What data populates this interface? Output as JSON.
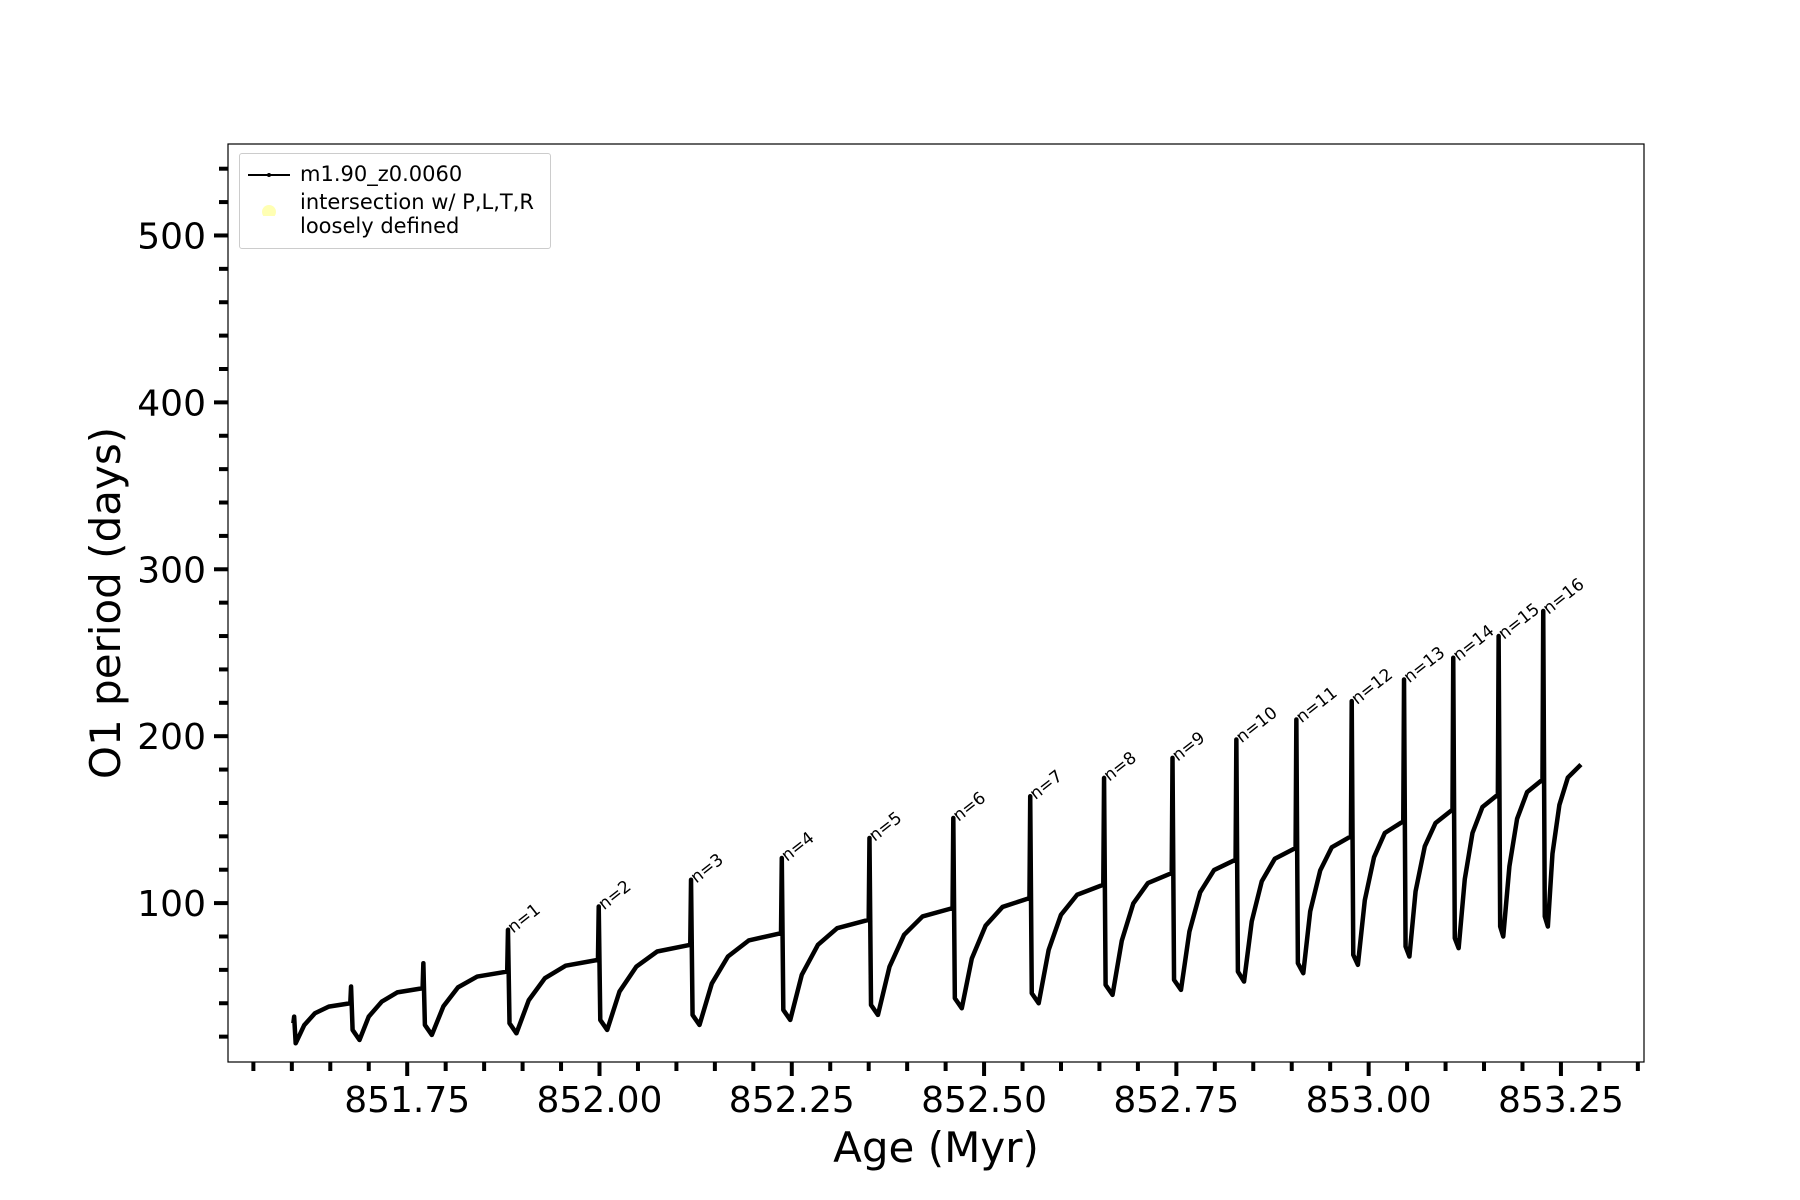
{
  "chart_data": {
    "type": "line",
    "x_label": "Age (Myr)",
    "y_label": "O1 period (days)",
    "xlim": [
      851.517,
      853.358
    ],
    "ylim": [
      4.8,
      554.8
    ],
    "xticks": [
      {
        "value": 851.75,
        "label": "851.75"
      },
      {
        "value": 852,
        "label": "852.00"
      },
      {
        "value": 852.25,
        "label": "852.25"
      },
      {
        "value": 852.5,
        "label": "852.50"
      },
      {
        "value": 852.75,
        "label": "852.75"
      },
      {
        "value": 853,
        "label": "853.00"
      },
      {
        "value": 853.25,
        "label": "853.25"
      }
    ],
    "xminorticks": [
      851.55,
      851.6,
      851.65,
      851.7,
      851.8,
      851.85,
      851.9,
      851.95,
      852.05,
      852.1,
      852.15,
      852.2,
      852.3,
      852.35,
      852.4,
      852.45,
      852.55,
      852.6,
      852.65,
      852.7,
      852.8,
      852.85,
      852.9,
      852.95,
      853.05,
      853.1,
      853.15,
      853.2,
      853.3,
      853.35
    ],
    "yticks": [
      100,
      200,
      300,
      400,
      500
    ],
    "yminorticks": [
      20,
      40,
      60,
      80,
      120,
      140,
      160,
      180,
      220,
      240,
      260,
      280,
      320,
      340,
      360,
      380,
      420,
      440,
      460,
      480,
      520,
      540
    ],
    "grid": false,
    "legend": "upper left",
    "series": [
      {
        "name": "m1.90_z0.0060",
        "color": "#000000",
        "x": [
          851.602,
          851.603,
          851.605,
          851.616,
          851.63,
          851.648,
          851.676,
          851.677,
          851.679,
          851.688,
          851.7,
          851.717,
          851.737,
          851.77,
          851.771,
          851.773,
          851.782,
          851.797,
          851.816,
          851.841,
          851.88,
          851.881,
          851.883,
          851.892,
          851.908,
          851.929,
          851.956,
          851.998,
          851.999,
          852.001,
          852.01,
          852.026,
          852.048,
          852.075,
          852.118,
          852.119,
          852.121,
          852.13,
          852.146,
          852.167,
          852.194,
          852.236,
          852.237,
          852.239,
          852.248,
          852.263,
          852.284,
          852.309,
          852.35,
          852.351,
          852.353,
          852.362,
          852.377,
          852.396,
          852.42,
          852.459,
          852.46,
          852.462,
          852.471,
          852.484,
          852.502,
          852.524,
          852.559,
          852.56,
          852.562,
          852.571,
          852.584,
          852.6,
          852.621,
          852.655,
          852.656,
          852.658,
          852.667,
          852.679,
          852.694,
          852.713,
          852.744,
          852.745,
          852.747,
          852.756,
          852.767,
          852.781,
          852.799,
          852.827,
          852.828,
          852.83,
          852.838,
          852.848,
          852.861,
          852.878,
          852.905,
          852.906,
          852.908,
          852.915,
          852.924,
          852.937,
          852.952,
          852.977,
          852.978,
          852.98,
          852.986,
          852.995,
          853.007,
          853.021,
          853.045,
          853.046,
          853.048,
          853.053,
          853.061,
          853.073,
          853.087,
          853.109,
          853.11,
          853.112,
          853.117,
          853.125,
          853.135,
          853.148,
          853.168,
          853.169,
          853.171,
          853.175,
          853.183,
          853.193,
          853.206,
          853.226,
          853.227,
          853.229,
          853.233,
          853.239,
          853.248,
          853.259,
          853.276
        ],
        "values": [
          28,
          32,
          16,
          26.8,
          34,
          38,
          40,
          50,
          24,
          18,
          32,
          41,
          46.5,
          49,
          64,
          27,
          21,
          38.1,
          49.5,
          56,
          59,
          84,
          28,
          22,
          41.8,
          55,
          62.5,
          66,
          98,
          30,
          24,
          47,
          62,
          71,
          75,
          114,
          33,
          27,
          51.8,
          68,
          77.6,
          82,
          127,
          36,
          30,
          57,
          75,
          85,
          90,
          139,
          39,
          33,
          61.8,
          81,
          92,
          97,
          151,
          43,
          37,
          66.7,
          86.5,
          97.7,
          103,
          164,
          46,
          40,
          72,
          93,
          105,
          111,
          175,
          51,
          45,
          77.4,
          99.8,
          112,
          118,
          187,
          54,
          48,
          83,
          106.5,
          119.8,
          126,
          198,
          59,
          53,
          89,
          113,
          126.6,
          133,
          210,
          64,
          58,
          95,
          119.5,
          133.4,
          140,
          221,
          69,
          63,
          101.7,
          127.5,
          142,
          149,
          234,
          74,
          68,
          107,
          134,
          148,
          156,
          247,
          79,
          73,
          114.4,
          142,
          157.6,
          165,
          260,
          86,
          80,
          122,
          150.5,
          166.5,
          174,
          275,
          92,
          86,
          129.6,
          158.8,
          175.2,
          183
        ]
      },
      {
        "name": "intersection w/ P,L,T,R\nloosely defined",
        "color": "#ffffb3",
        "x": [],
        "values": []
      }
    ],
    "annotations": [
      {
        "text": "n=1",
        "x": 851.88,
        "y": 84
      },
      {
        "text": "n=2",
        "x": 851.998,
        "y": 98
      },
      {
        "text": "n=3",
        "x": 852.118,
        "y": 114
      },
      {
        "text": "n=4",
        "x": 852.236,
        "y": 127
      },
      {
        "text": "n=5",
        "x": 852.35,
        "y": 139
      },
      {
        "text": "n=6",
        "x": 852.459,
        "y": 151
      },
      {
        "text": "n=7",
        "x": 852.559,
        "y": 164
      },
      {
        "text": "n=8",
        "x": 852.655,
        "y": 175
      },
      {
        "text": "n=9",
        "x": 852.744,
        "y": 187
      },
      {
        "text": "n=10",
        "x": 852.827,
        "y": 198
      },
      {
        "text": "n=11",
        "x": 852.905,
        "y": 210
      },
      {
        "text": "n=12",
        "x": 852.977,
        "y": 221
      },
      {
        "text": "n=13",
        "x": 853.045,
        "y": 234
      },
      {
        "text": "n=14",
        "x": 853.109,
        "y": 247
      },
      {
        "text": "n=15",
        "x": 853.168,
        "y": 260
      },
      {
        "text": "n=16",
        "x": 853.226,
        "y": 275
      }
    ]
  }
}
